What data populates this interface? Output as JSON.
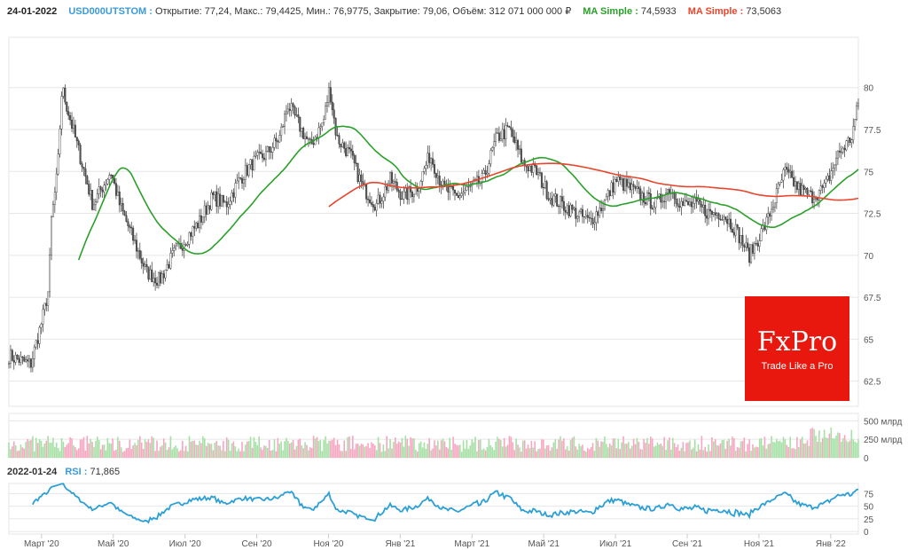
{
  "header": {
    "date": "24-01-2022",
    "symbol": "USD000UTSTOM :",
    "ohlc": "Открытие: 77,24, Макс.: 79,4425, Мин.: 76,9775, Закрытие: 79,06, Объём: 312 071 000 000 ₽",
    "ma1_label": "MA Simple :",
    "ma1_value": "74,5933",
    "ma2_label": "MA Simple :",
    "ma2_value": "73,5063"
  },
  "rsi_header": {
    "date": "2022-01-24",
    "label": "RSI :",
    "value": "71,865"
  },
  "logo": {
    "brand": "FxPro",
    "tagline": "Trade Like a Pro"
  },
  "colors": {
    "up": "#ffffff",
    "down": "#555555",
    "ma_fast": "#2aa02a",
    "ma_slow": "#e8452c",
    "rsi": "#2b9fd6",
    "vol_up": "#a6e0a6",
    "vol_down": "#f7a6c0",
    "accent": "#3a9ad9"
  },
  "chart_data": {
    "type": "candlestick",
    "x_unit": "months since 2020-02-01",
    "xlim": [
      0.09,
      23.77
    ],
    "x_ticks": [
      {
        "t": 1,
        "label": "Март '20"
      },
      {
        "t": 3,
        "label": "Май '20"
      },
      {
        "t": 5,
        "label": "Июл '20"
      },
      {
        "t": 7,
        "label": "Сен '20"
      },
      {
        "t": 9,
        "label": "Ноя '20"
      },
      {
        "t": 11,
        "label": "Янв '21"
      },
      {
        "t": 13,
        "label": "Март '21"
      },
      {
        "t": 15,
        "label": "Май '21"
      },
      {
        "t": 17,
        "label": "Июл '21"
      },
      {
        "t": 19,
        "label": "Сен '21"
      },
      {
        "t": 21,
        "label": "Ноя '21"
      },
      {
        "t": 23,
        "label": "Янв '22"
      }
    ],
    "price_ylim": [
      61,
      83
    ],
    "price_ticks": [
      62.5,
      65,
      67.5,
      70,
      72.5,
      75,
      77.5,
      80
    ],
    "price_tick_labels": [
      "62.5",
      "65",
      "67.5",
      "70",
      "72.5",
      "75",
      "77.5",
      "80"
    ],
    "close_path": [
      [
        0.09,
        64
      ],
      [
        0.7,
        63.5
      ],
      [
        1.0,
        66
      ],
      [
        1.2,
        68
      ],
      [
        1.27,
        72
      ],
      [
        1.45,
        75
      ],
      [
        1.57,
        80
      ],
      [
        1.69,
        79
      ],
      [
        1.94,
        77
      ],
      [
        2.19,
        75
      ],
      [
        2.43,
        73
      ],
      [
        2.68,
        74
      ],
      [
        2.93,
        75
      ],
      [
        3.18,
        73
      ],
      [
        3.55,
        71
      ],
      [
        3.92,
        69
      ],
      [
        4.29,
        68.5
      ],
      [
        4.66,
        70
      ],
      [
        5.03,
        71
      ],
      [
        5.4,
        72
      ],
      [
        5.77,
        73.5
      ],
      [
        6.14,
        73
      ],
      [
        6.51,
        74.5
      ],
      [
        6.88,
        75.5
      ],
      [
        7.25,
        76
      ],
      [
        7.63,
        77
      ],
      [
        7.87,
        79
      ],
      [
        8.12,
        78
      ],
      [
        8.49,
        76.5
      ],
      [
        8.86,
        78
      ],
      [
        9.03,
        80
      ],
      [
        9.23,
        77
      ],
      [
        9.6,
        76
      ],
      [
        9.97,
        74
      ],
      [
        10.34,
        73
      ],
      [
        10.72,
        74.5
      ],
      [
        11.09,
        73.5
      ],
      [
        11.46,
        74
      ],
      [
        11.83,
        76
      ],
      [
        12.2,
        74
      ],
      [
        12.57,
        73.5
      ],
      [
        12.94,
        74
      ],
      [
        13.31,
        74.5
      ],
      [
        13.68,
        77
      ],
      [
        14.05,
        77.5
      ],
      [
        14.42,
        75.5
      ],
      [
        14.79,
        75
      ],
      [
        15.17,
        73.5
      ],
      [
        15.54,
        73
      ],
      [
        15.91,
        72.5
      ],
      [
        16.28,
        72
      ],
      [
        16.65,
        73
      ],
      [
        17.02,
        74.5
      ],
      [
        17.39,
        74
      ],
      [
        17.76,
        73.5
      ],
      [
        18.13,
        73
      ],
      [
        18.5,
        74
      ],
      [
        18.87,
        73
      ],
      [
        19.24,
        73
      ],
      [
        19.62,
        72.5
      ],
      [
        19.99,
        72.5
      ],
      [
        20.36,
        71.5
      ],
      [
        20.73,
        70
      ],
      [
        20.98,
        71
      ],
      [
        21.22,
        72
      ],
      [
        21.47,
        73.5
      ],
      [
        21.72,
        75
      ],
      [
        22.09,
        74
      ],
      [
        22.46,
        73.5
      ],
      [
        22.83,
        74
      ],
      [
        23.2,
        76
      ],
      [
        23.57,
        77
      ],
      [
        23.77,
        79
      ]
    ],
    "series": [
      {
        "name": "MA Simple (fast)",
        "last": 74.5933
      },
      {
        "name": "MA Simple (slow)",
        "last": 73.5063
      }
    ],
    "volume": {
      "ylim": [
        0,
        600
      ],
      "ticks": [
        0,
        250,
        500
      ],
      "tick_labels": [
        "0",
        "250 млрд",
        "500 млрд"
      ],
      "last": 312.071
    },
    "rsi": {
      "ylim": [
        -5,
        95
      ],
      "ticks": [
        0,
        25,
        50,
        75
      ],
      "tick_labels": [
        "0",
        "25",
        "50",
        "75"
      ],
      "last": 71.865
    }
  }
}
